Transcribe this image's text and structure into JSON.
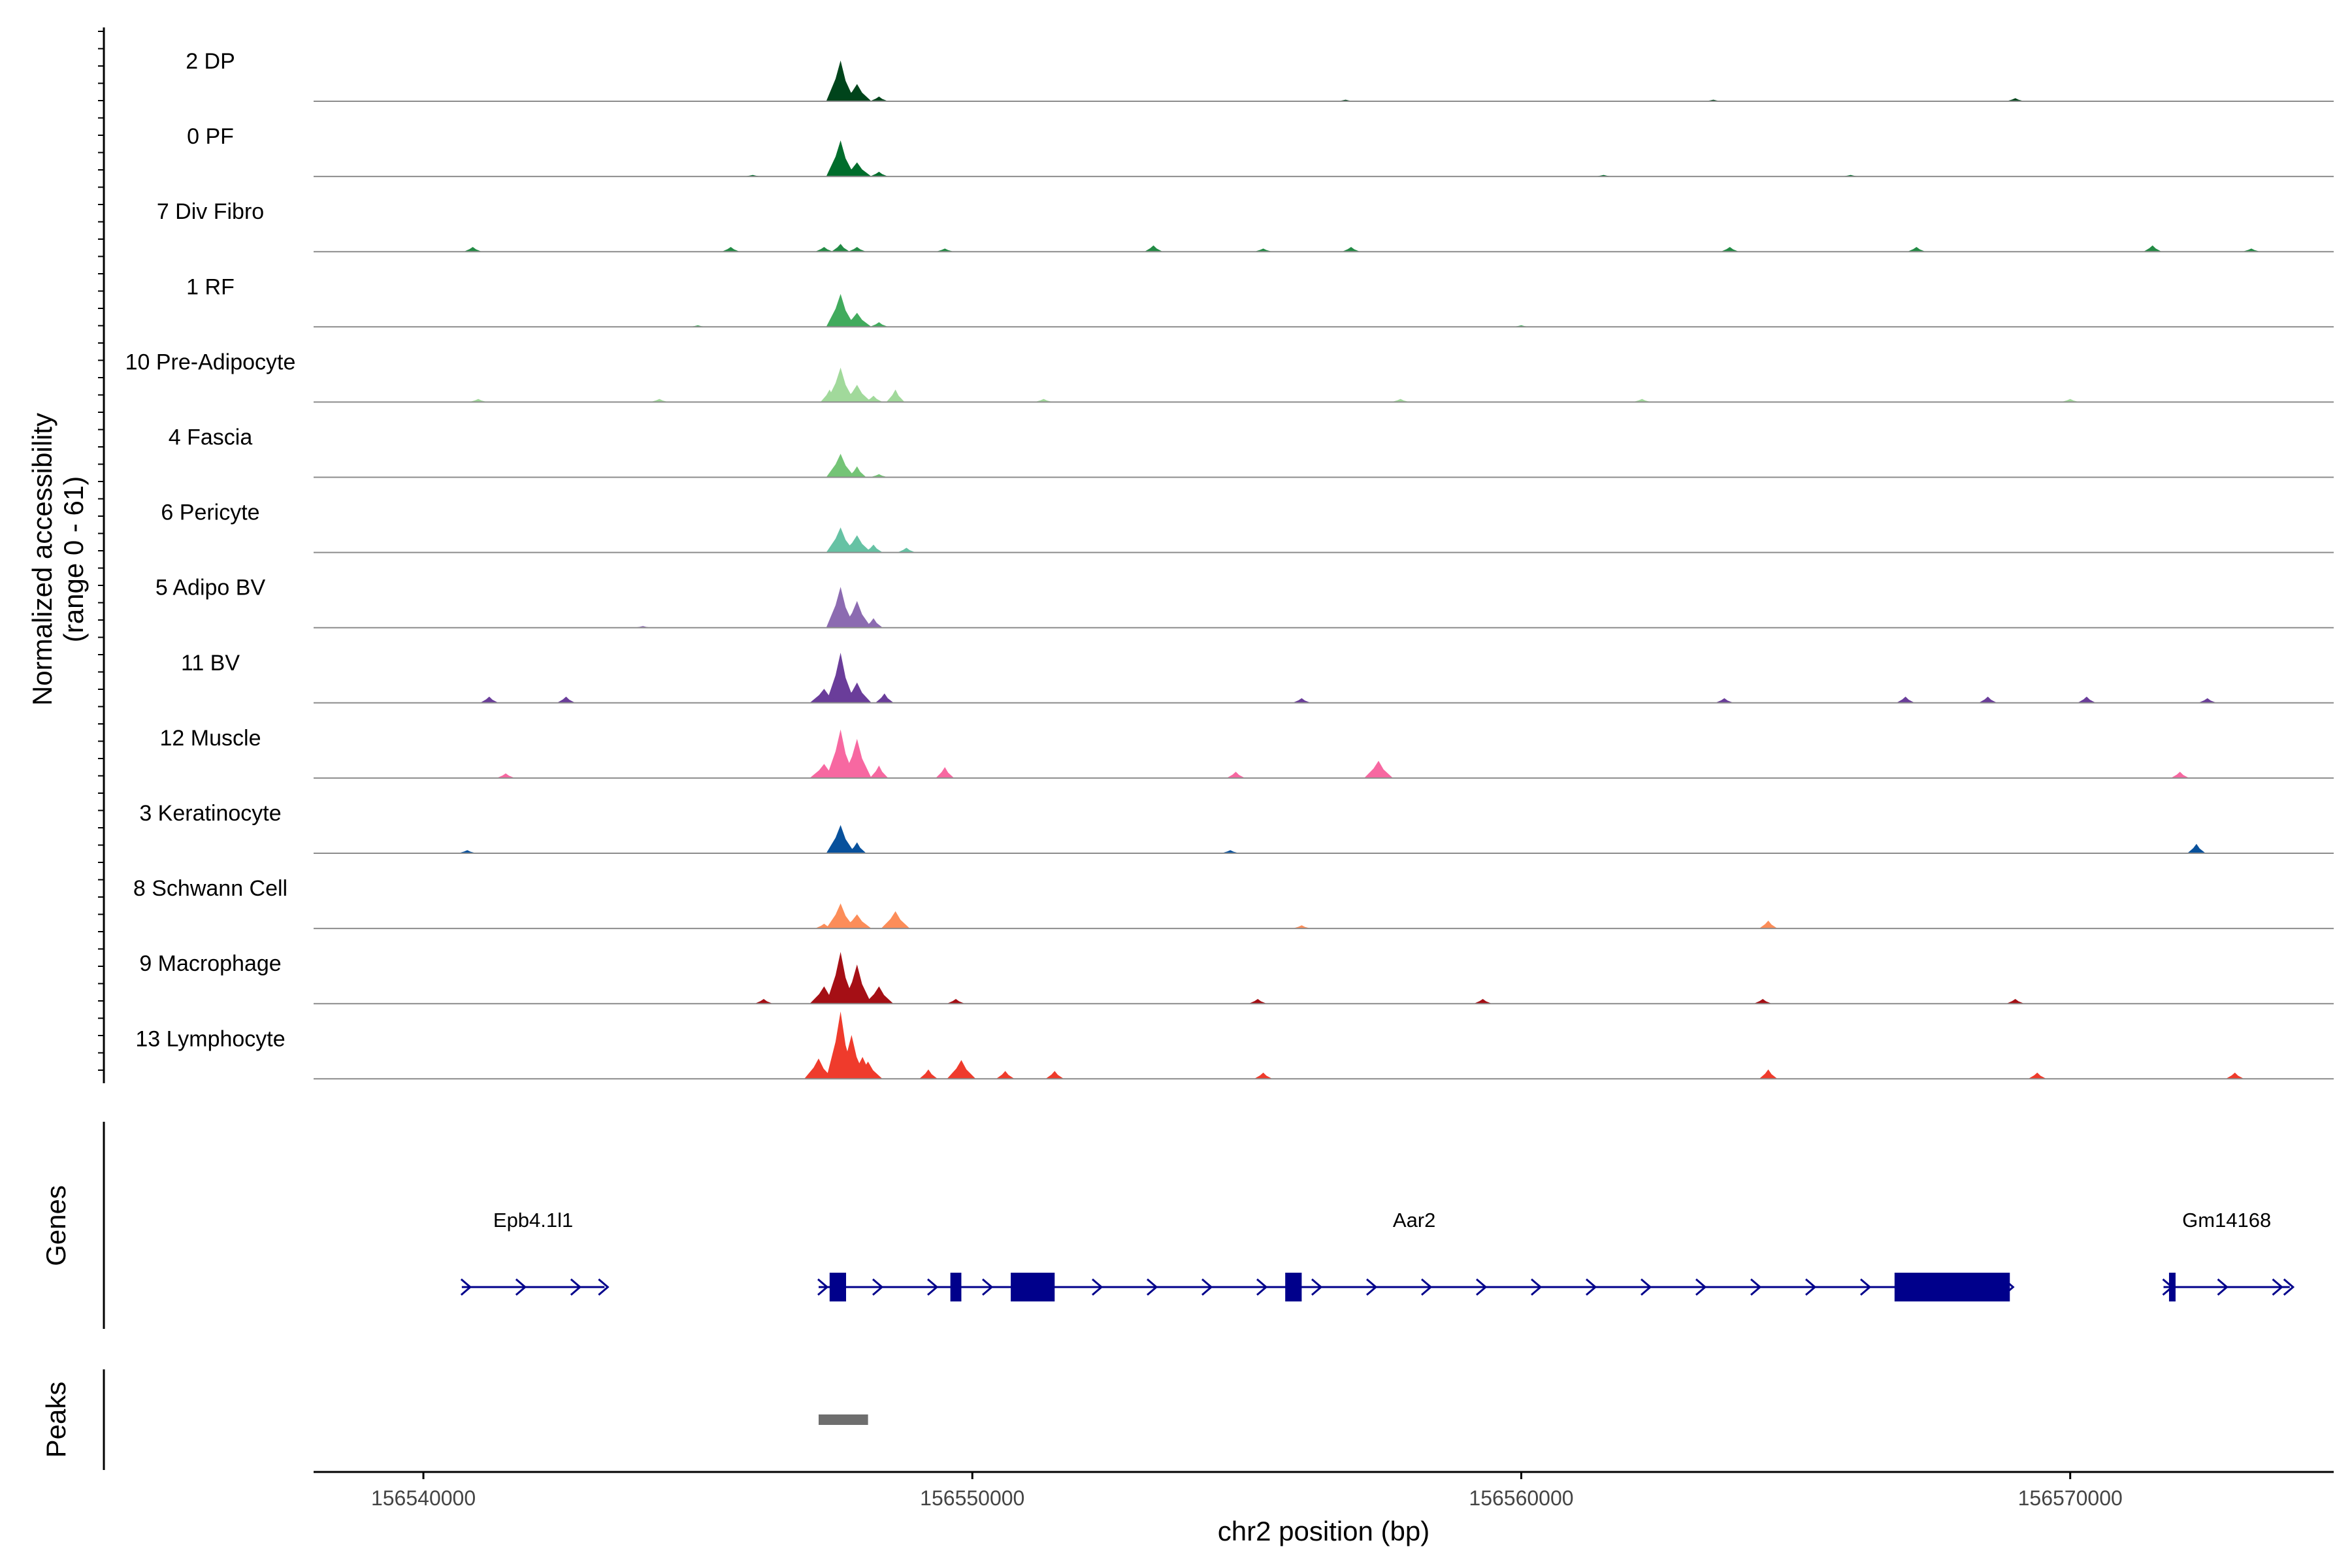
{
  "chart_data": {
    "type": "coverage-track",
    "ylabel_line1": "Normalized accessibility",
    "ylabel_line2": "(range 0 - 61)",
    "y_range": [
      0,
      61
    ],
    "xlabel": "chr2 position (bp)",
    "x_range": [
      156538000,
      156574800
    ],
    "x_ticks": [
      156540000,
      156550000,
      156560000,
      156570000
    ],
    "x_tick_labels": [
      "156540000",
      "156550000",
      "156560000",
      "156570000"
    ],
    "genes_title": "Genes",
    "peaks_title": "Peaks",
    "tracks": [
      {
        "label": "2 DP",
        "color": "#00441b",
        "peaks": [
          [
            156547600,
            26
          ],
          [
            156547900,
            11
          ],
          [
            156548300,
            3
          ],
          [
            156556800,
            1
          ],
          [
            156563500,
            1
          ],
          [
            156569000,
            2
          ]
        ]
      },
      {
        "label": "0 PF",
        "color": "#006d2c",
        "peaks": [
          [
            156547600,
            23
          ],
          [
            156547900,
            9
          ],
          [
            156548300,
            3
          ],
          [
            156546000,
            1
          ],
          [
            156561500,
            1
          ],
          [
            156566000,
            1
          ]
        ]
      },
      {
        "label": "7 Div Fibro",
        "color": "#238b45",
        "peaks": [
          [
            156540900,
            3
          ],
          [
            156545600,
            3
          ],
          [
            156547300,
            3
          ],
          [
            156547600,
            5
          ],
          [
            156547900,
            3
          ],
          [
            156549500,
            2
          ],
          [
            156553300,
            4
          ],
          [
            156555300,
            2
          ],
          [
            156556900,
            3
          ],
          [
            156563800,
            3
          ],
          [
            156567200,
            3
          ],
          [
            156571500,
            4
          ],
          [
            156573300,
            2
          ]
        ]
      },
      {
        "label": "1 RF",
        "color": "#41ab5d",
        "peaks": [
          [
            156547600,
            21
          ],
          [
            156547900,
            9
          ],
          [
            156548300,
            3
          ],
          [
            156545000,
            1
          ],
          [
            156560000,
            1
          ]
        ]
      },
      {
        "label": "10 Pre-Adipocyte",
        "color": "#a1d99b",
        "peaks": [
          [
            156547400,
            8
          ],
          [
            156547600,
            22
          ],
          [
            156547900,
            11
          ],
          [
            156548200,
            4
          ],
          [
            156548600,
            8
          ],
          [
            156541000,
            2
          ],
          [
            156544300,
            2
          ],
          [
            156551300,
            2
          ],
          [
            156557800,
            2
          ],
          [
            156562200,
            2
          ],
          [
            156570000,
            2
          ]
        ]
      },
      {
        "label": "4 Fascia",
        "color": "#74c476",
        "peaks": [
          [
            156547600,
            15
          ],
          [
            156547900,
            7
          ],
          [
            156548300,
            2
          ]
        ]
      },
      {
        "label": "6 Pericyte",
        "color": "#66c2a4",
        "peaks": [
          [
            156547600,
            16
          ],
          [
            156547900,
            11
          ],
          [
            156548200,
            5
          ],
          [
            156548800,
            3
          ]
        ]
      },
      {
        "label": "5 Adipo BV",
        "color": "#8c6bb1",
        "peaks": [
          [
            156547600,
            26
          ],
          [
            156547900,
            17
          ],
          [
            156548200,
            6
          ],
          [
            156544000,
            1
          ]
        ]
      },
      {
        "label": "11 BV",
        "color": "#6a3d9a",
        "peaks": [
          [
            156547600,
            32
          ],
          [
            156547300,
            9
          ],
          [
            156547900,
            13
          ],
          [
            156548400,
            6
          ],
          [
            156541200,
            4
          ],
          [
            156542600,
            4
          ],
          [
            156556000,
            3
          ],
          [
            156563700,
            3
          ],
          [
            156567000,
            4
          ],
          [
            156568500,
            4
          ],
          [
            156570300,
            4
          ],
          [
            156572500,
            3
          ]
        ]
      },
      {
        "label": "12 Muscle",
        "color": "#f768a1",
        "peaks": [
          [
            156547600,
            31
          ],
          [
            156547300,
            9
          ],
          [
            156547900,
            25
          ],
          [
            156548300,
            8
          ],
          [
            156549500,
            7
          ],
          [
            156541500,
            3
          ],
          [
            156554800,
            4
          ],
          [
            156557400,
            11
          ],
          [
            156572000,
            4
          ]
        ]
      },
      {
        "label": "3 Keratinocyte",
        "color": "#08519c",
        "peaks": [
          [
            156547600,
            18
          ],
          [
            156547900,
            7
          ],
          [
            156540800,
            2
          ],
          [
            156554700,
            2
          ],
          [
            156572300,
            6
          ]
        ]
      },
      {
        "label": "8 Schwann Cell",
        "color": "#fc8d59",
        "peaks": [
          [
            156547600,
            16
          ],
          [
            156547900,
            9
          ],
          [
            156548600,
            11
          ],
          [
            156564500,
            5
          ],
          [
            156547300,
            3
          ],
          [
            156556000,
            2
          ]
        ]
      },
      {
        "label": "9 Macrophage",
        "color": "#a50f15",
        "peaks": [
          [
            156547600,
            33
          ],
          [
            156547300,
            11
          ],
          [
            156547900,
            25
          ],
          [
            156548300,
            11
          ],
          [
            156546200,
            3
          ],
          [
            156549700,
            3
          ],
          [
            156555200,
            3
          ],
          [
            156559300,
            3
          ],
          [
            156564400,
            3
          ],
          [
            156569000,
            3
          ]
        ]
      },
      {
        "label": "13 Lymphocyte",
        "color": "#ef3b2c",
        "peaks": [
          [
            156547600,
            43
          ],
          [
            156547200,
            13
          ],
          [
            156547800,
            28
          ],
          [
            156548100,
            11
          ],
          [
            156548000,
            14
          ],
          [
            156549800,
            12
          ],
          [
            156549200,
            6
          ],
          [
            156550600,
            5
          ],
          [
            156551500,
            5
          ],
          [
            156555300,
            4
          ],
          [
            156564500,
            6
          ],
          [
            156569400,
            4
          ],
          [
            156573000,
            4
          ]
        ]
      }
    ],
    "genes": [
      {
        "name": "Epb4.1l1",
        "start": 156540700,
        "end": 156543300,
        "strand": "+",
        "exons": []
      },
      {
        "name": "Aar2",
        "start": 156547200,
        "end": 156568900,
        "strand": "+",
        "exons": [
          [
            156547400,
            156547700
          ],
          [
            156549600,
            156549800
          ],
          [
            156550700,
            156551500
          ],
          [
            156555700,
            156556000
          ],
          [
            156566800,
            156568900
          ]
        ]
      },
      {
        "name": "Gm14168",
        "start": 156571700,
        "end": 156574000,
        "strand": "+",
        "exons": [
          [
            156571800,
            156571900
          ]
        ]
      }
    ],
    "peak_regions": [
      [
        156547200,
        156548100
      ]
    ]
  }
}
